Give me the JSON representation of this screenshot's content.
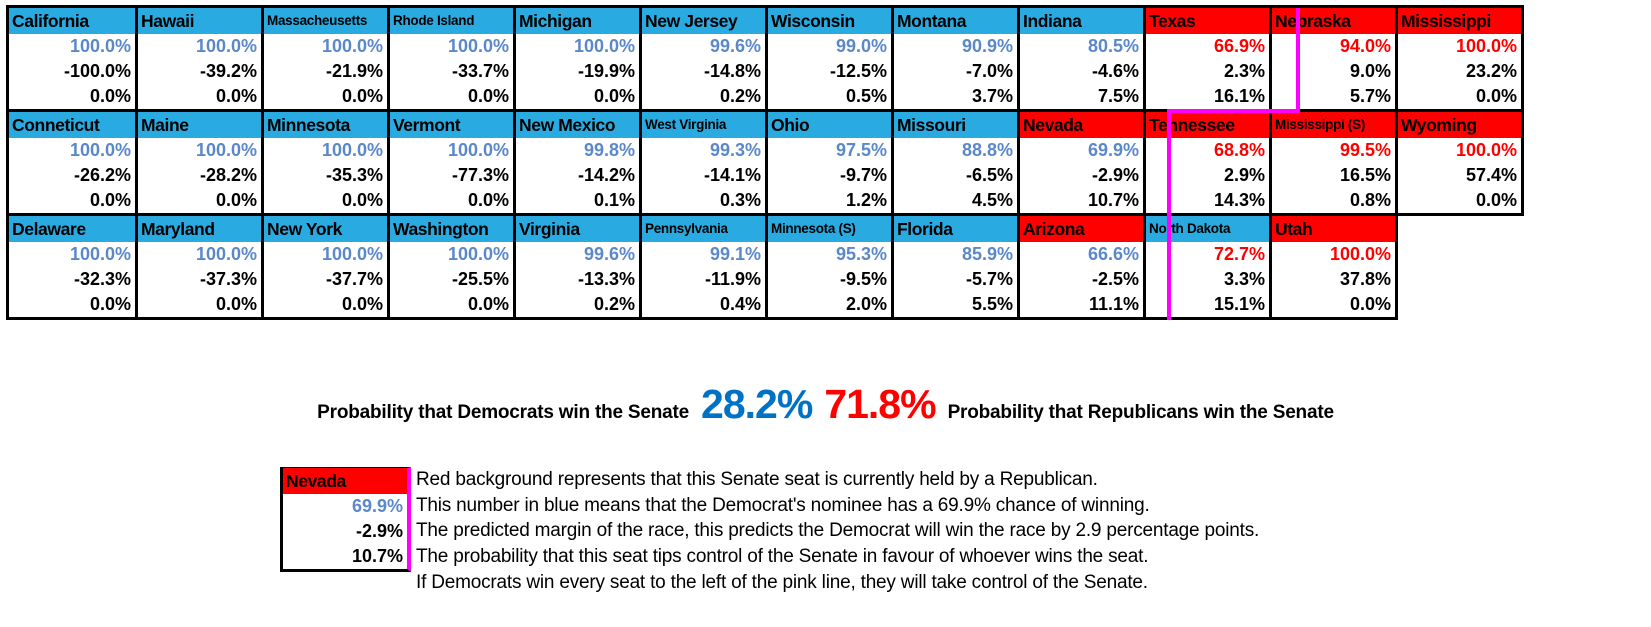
{
  "table": {
    "rows": [
      [
        {
          "name": "California",
          "seat": "D",
          "prob": "100.0%",
          "lean": "D",
          "margin": "-100.0%",
          "tip": "0.0%"
        },
        {
          "name": "Hawaii",
          "seat": "D",
          "prob": "100.0%",
          "lean": "D",
          "margin": "-39.2%",
          "tip": "0.0%"
        },
        {
          "name": "Massacheusetts",
          "seat": "D",
          "prob": "100.0%",
          "lean": "D",
          "margin": "-21.9%",
          "tip": "0.0%"
        },
        {
          "name": "Rhode Island",
          "seat": "D",
          "prob": "100.0%",
          "lean": "D",
          "margin": "-33.7%",
          "tip": "0.0%"
        },
        {
          "name": "Michigan",
          "seat": "D",
          "prob": "100.0%",
          "lean": "D",
          "margin": "-19.9%",
          "tip": "0.0%"
        },
        {
          "name": "New Jersey",
          "seat": "D",
          "prob": "99.6%",
          "lean": "D",
          "margin": "-14.8%",
          "tip": "0.2%"
        },
        {
          "name": "Wisconsin",
          "seat": "D",
          "prob": "99.0%",
          "lean": "D",
          "margin": "-12.5%",
          "tip": "0.5%"
        },
        {
          "name": "Montana",
          "seat": "D",
          "prob": "90.9%",
          "lean": "D",
          "margin": "-7.0%",
          "tip": "3.7%"
        },
        {
          "name": "Indiana",
          "seat": "D",
          "prob": "80.5%",
          "lean": "D",
          "margin": "-4.6%",
          "tip": "7.5%"
        },
        {
          "name": "Texas",
          "seat": "R",
          "prob": "66.9%",
          "lean": "R",
          "margin": "2.3%",
          "tip": "16.1%"
        },
        {
          "name": "Nebraska",
          "seat": "R",
          "prob": "94.0%",
          "lean": "R",
          "margin": "9.0%",
          "tip": "5.7%"
        },
        {
          "name": "Mississippi",
          "seat": "R",
          "prob": "100.0%",
          "lean": "R",
          "margin": "23.2%",
          "tip": "0.0%"
        }
      ],
      [
        {
          "name": "Conneticut",
          "seat": "D",
          "prob": "100.0%",
          "lean": "D",
          "margin": "-26.2%",
          "tip": "0.0%"
        },
        {
          "name": "Maine",
          "seat": "D",
          "prob": "100.0%",
          "lean": "D",
          "margin": "-28.2%",
          "tip": "0.0%"
        },
        {
          "name": "Minnesota",
          "seat": "D",
          "prob": "100.0%",
          "lean": "D",
          "margin": "-35.3%",
          "tip": "0.0%"
        },
        {
          "name": "Vermont",
          "seat": "D",
          "prob": "100.0%",
          "lean": "D",
          "margin": "-77.3%",
          "tip": "0.0%"
        },
        {
          "name": "New Mexico",
          "seat": "D",
          "prob": "99.8%",
          "lean": "D",
          "margin": "-14.2%",
          "tip": "0.1%"
        },
        {
          "name": "West Virginia",
          "seat": "D",
          "prob": "99.3%",
          "lean": "D",
          "margin": "-14.1%",
          "tip": "0.3%"
        },
        {
          "name": "Ohio",
          "seat": "D",
          "prob": "97.5%",
          "lean": "D",
          "margin": "-9.7%",
          "tip": "1.2%"
        },
        {
          "name": "Missouri",
          "seat": "D",
          "prob": "88.8%",
          "lean": "D",
          "margin": "-6.5%",
          "tip": "4.5%"
        },
        {
          "name": "Nevada",
          "seat": "R",
          "prob": "69.9%",
          "lean": "D",
          "margin": "-2.9%",
          "tip": "10.7%"
        },
        {
          "name": "Tennessee",
          "seat": "R",
          "prob": "68.8%",
          "lean": "R",
          "margin": "2.9%",
          "tip": "14.3%"
        },
        {
          "name": "Mississippi (S)",
          "seat": "R",
          "prob": "99.5%",
          "lean": "R",
          "margin": "16.5%",
          "tip": "0.8%"
        },
        {
          "name": "Wyoming",
          "seat": "R",
          "prob": "100.0%",
          "lean": "R",
          "margin": "57.4%",
          "tip": "0.0%"
        }
      ],
      [
        {
          "name": "Delaware",
          "seat": "D",
          "prob": "100.0%",
          "lean": "D",
          "margin": "-32.3%",
          "tip": "0.0%"
        },
        {
          "name": "Maryland",
          "seat": "D",
          "prob": "100.0%",
          "lean": "D",
          "margin": "-37.3%",
          "tip": "0.0%"
        },
        {
          "name": "New York",
          "seat": "D",
          "prob": "100.0%",
          "lean": "D",
          "margin": "-37.7%",
          "tip": "0.0%"
        },
        {
          "name": "Washington",
          "seat": "D",
          "prob": "100.0%",
          "lean": "D",
          "margin": "-25.5%",
          "tip": "0.0%"
        },
        {
          "name": "Virginia",
          "seat": "D",
          "prob": "99.6%",
          "lean": "D",
          "margin": "-13.3%",
          "tip": "0.2%"
        },
        {
          "name": "Pennsylvania",
          "seat": "D",
          "prob": "99.1%",
          "lean": "D",
          "margin": "-11.9%",
          "tip": "0.4%"
        },
        {
          "name": "Minnesota (S)",
          "seat": "D",
          "prob": "95.3%",
          "lean": "D",
          "margin": "-9.5%",
          "tip": "2.0%"
        },
        {
          "name": "Florida",
          "seat": "D",
          "prob": "85.9%",
          "lean": "D",
          "margin": "-5.7%",
          "tip": "5.5%"
        },
        {
          "name": "Arizona",
          "seat": "R",
          "prob": "66.6%",
          "lean": "D",
          "margin": "-2.5%",
          "tip": "11.1%"
        },
        {
          "name": "North Dakota",
          "seat": "D",
          "prob": "72.7%",
          "lean": "R",
          "margin": "3.3%",
          "tip": "15.1%"
        },
        {
          "name": "Utah",
          "seat": "R",
          "prob": "100.0%",
          "lean": "R",
          "margin": "37.8%",
          "tip": "0.0%"
        }
      ]
    ]
  },
  "summary": {
    "dem_label": "Probability that Democrats win the Senate",
    "dem_value": "28.2%",
    "rep_value": "71.8%",
    "rep_label": "Probability that Republicans win the Senate"
  },
  "legend": {
    "sample": {
      "name": "Nevada",
      "seat": "R",
      "prob": "69.9%",
      "lean": "D",
      "margin": "-2.9%",
      "tip": "10.7%"
    },
    "lines": [
      "Red background represents that this Senate seat is currently held by a Republican.",
      "This number in blue means that the Democrat's nominee has a 69.9% chance of winning.",
      "The predicted margin of the race, this predicts the Democrat will win the race by 2.9 percentage points.",
      "The probability that this seat tips control of the Senate in favour of whoever wins the seat.",
      "If Democrats win every seat to the left of the pink line, they will take control of the Senate."
    ]
  },
  "colors": {
    "dem_seat": "#29ABE2",
    "rep_seat": "#FF0000",
    "dem_lean": "#5B88C9",
    "rep_lean": "#FF0000",
    "dem_total": "#0072C6",
    "rep_total": "#FF0000",
    "tipping_line": "#FF00FF"
  }
}
